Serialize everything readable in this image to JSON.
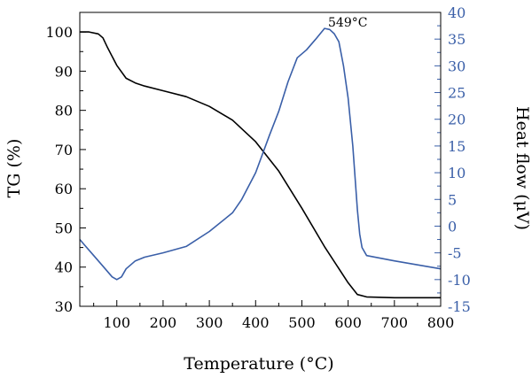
{
  "chart_data": {
    "type": "line",
    "xlabel": "Temperature (°C)",
    "ylabel_left": "TG (%)",
    "ylabel_right": "Heat flow (μV)",
    "xlim": [
      20,
      800
    ],
    "ylim_left": [
      30,
      105
    ],
    "ylim_right": [
      -15,
      40
    ],
    "x_ticks": [
      100,
      200,
      300,
      400,
      500,
      600,
      700,
      800
    ],
    "y_ticks_left": [
      30,
      40,
      50,
      60,
      70,
      80,
      90,
      100
    ],
    "y_ticks_right": [
      -15,
      -10,
      -5,
      0,
      5,
      10,
      15,
      20,
      25,
      30,
      35,
      40
    ],
    "annotation": {
      "text": "549°C",
      "x": 549,
      "y": 37
    },
    "series": [
      {
        "axis": "left",
        "color": "#000000",
        "points": [
          [
            20,
            100
          ],
          [
            40,
            100
          ],
          [
            60,
            99.5
          ],
          [
            70,
            98.5
          ],
          [
            80,
            96
          ],
          [
            100,
            91.5
          ],
          [
            120,
            88.2
          ],
          [
            140,
            87
          ],
          [
            160,
            86.2
          ],
          [
            200,
            85
          ],
          [
            250,
            83.5
          ],
          [
            300,
            81
          ],
          [
            350,
            77.5
          ],
          [
            400,
            72
          ],
          [
            450,
            64.5
          ],
          [
            500,
            55
          ],
          [
            550,
            45
          ],
          [
            600,
            36
          ],
          [
            620,
            33
          ],
          [
            640,
            32.4
          ],
          [
            700,
            32.2
          ],
          [
            800,
            32.2
          ]
        ]
      },
      {
        "axis": "right",
        "color": "#3a5fa8",
        "points": [
          [
            20,
            -2.5
          ],
          [
            30,
            -3.5
          ],
          [
            50,
            -5.5
          ],
          [
            70,
            -7.5
          ],
          [
            90,
            -9.5
          ],
          [
            100,
            -10
          ],
          [
            110,
            -9.5
          ],
          [
            120,
            -8
          ],
          [
            140,
            -6.5
          ],
          [
            160,
            -5.8
          ],
          [
            200,
            -5
          ],
          [
            250,
            -3.8
          ],
          [
            300,
            -1
          ],
          [
            350,
            2.5
          ],
          [
            370,
            5
          ],
          [
            400,
            10
          ],
          [
            430,
            17
          ],
          [
            450,
            21.5
          ],
          [
            470,
            27
          ],
          [
            490,
            31.5
          ],
          [
            510,
            33
          ],
          [
            530,
            35
          ],
          [
            549,
            37
          ],
          [
            560,
            36.8
          ],
          [
            570,
            36
          ],
          [
            580,
            34.5
          ],
          [
            590,
            30
          ],
          [
            600,
            24
          ],
          [
            610,
            15
          ],
          [
            620,
            3
          ],
          [
            625,
            -1.5
          ],
          [
            630,
            -4
          ],
          [
            640,
            -5.5
          ],
          [
            700,
            -6.5
          ],
          [
            800,
            -8
          ]
        ]
      }
    ]
  }
}
